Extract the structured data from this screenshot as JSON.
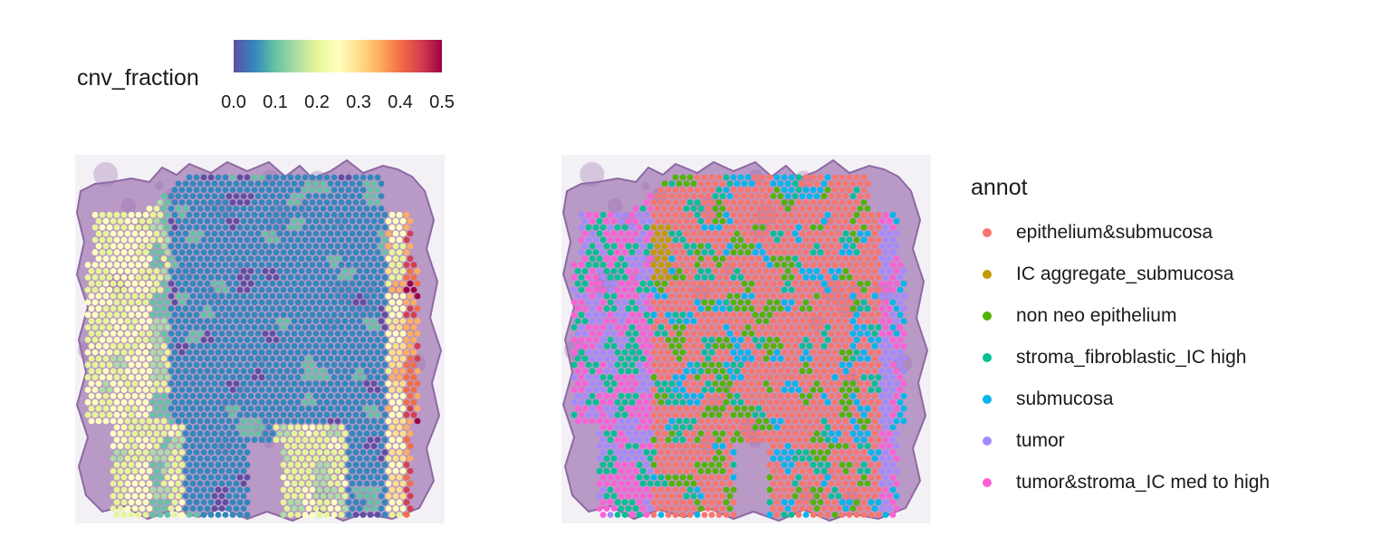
{
  "chart_data": [
    {
      "type": "scatter",
      "title": "",
      "legend": {
        "type": "colorbar",
        "title": "cnv_fraction",
        "range": [
          0.0,
          0.5
        ],
        "ticks": [
          "0.0",
          "0.1",
          "0.2",
          "0.3",
          "0.4",
          "0.5"
        ],
        "palette": [
          "#5E4FA2",
          "#3288BD",
          "#66C2A5",
          "#ABDDA4",
          "#E6F598",
          "#FFFFBF",
          "#FEE08B",
          "#FDAE61",
          "#F46D43",
          "#D53E4F",
          "#9E0142"
        ],
        "placement": "top-left"
      },
      "background": "H&E tissue image",
      "grid": false
    },
    {
      "type": "scatter",
      "title": "",
      "legend": {
        "type": "categorical",
        "title": "annot",
        "placement": "right",
        "entries": [
          {
            "label": "epithelium&submucosa",
            "color": "#F8766D"
          },
          {
            "label": "IC aggregate_submucosa",
            "color": "#C49A00"
          },
          {
            "label": "non neo epithelium",
            "color": "#53B400"
          },
          {
            "label": "stroma_fibroblastic_IC high",
            "color": "#00C094"
          },
          {
            "label": "submucosa",
            "color": "#00B6EB"
          },
          {
            "label": "tumor",
            "color": "#A58AFF"
          },
          {
            "label": "tumor&stroma_IC med to high",
            "color": "#FB61D7"
          }
        ]
      },
      "background": "H&E tissue image",
      "grid": false
    }
  ]
}
